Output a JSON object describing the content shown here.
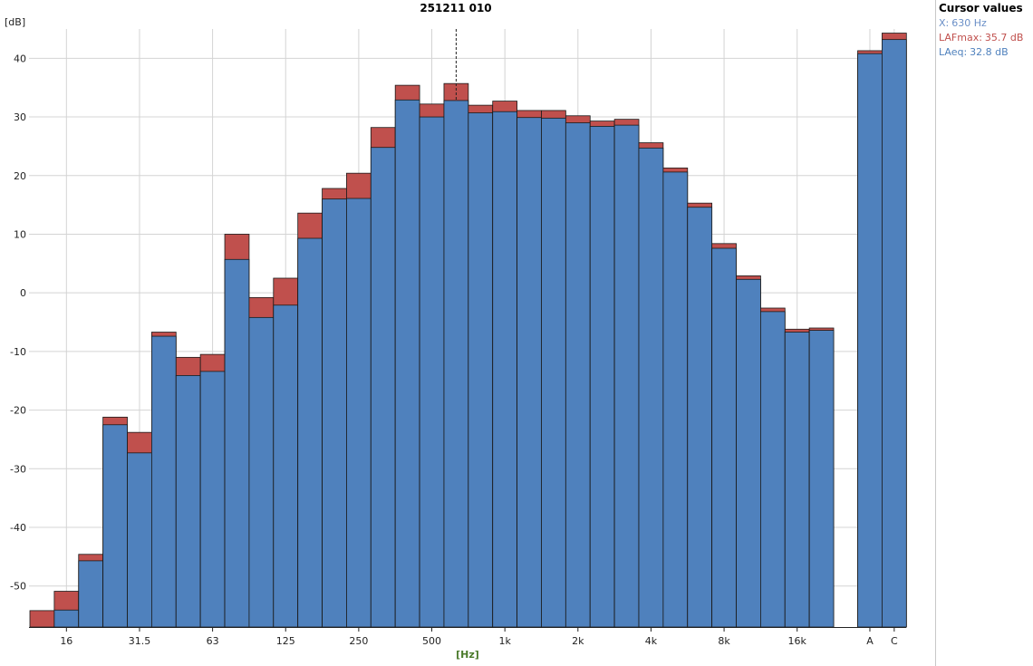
{
  "colors": {
    "laeq": "#4f81bd",
    "lafmax": "#c0504d",
    "grid": "#d4d4d4",
    "cursor_x": "#6a8fc7",
    "xlabel": "#4a7a2a"
  },
  "cursor": {
    "title": "Cursor values",
    "x_label": "X:",
    "x_value": "630 Hz",
    "lafmax_label": "LAFmax:",
    "lafmax_value": "35.7 dB",
    "laeq_label": "LAeq:",
    "laeq_value": "32.8 dB"
  },
  "chart_data": {
    "type": "bar",
    "title": "251211 010",
    "xlabel": "[Hz]",
    "ylabel": "[dB]",
    "ylim": [
      -57,
      45
    ],
    "yticks": [
      40,
      30,
      20,
      10,
      0,
      -10,
      -20,
      -30,
      -40,
      -50
    ],
    "grid": true,
    "cursor_category": "630",
    "categories": [
      "12.5",
      "16",
      "20",
      "25",
      "31.5",
      "40",
      "50",
      "63",
      "80",
      "100",
      "125",
      "160",
      "200",
      "250",
      "315",
      "400",
      "500",
      "630",
      "800",
      "1k",
      "1.25k",
      "1.6k",
      "2k",
      "2.5k",
      "3.15k",
      "4k",
      "5k",
      "6.3k",
      "8k",
      "10k",
      "12.5k",
      "16k",
      "20k"
    ],
    "tick_labels": [
      "",
      "16",
      "",
      "",
      "31.5",
      "",
      "",
      "63",
      "",
      "",
      "125",
      "",
      "",
      "250",
      "",
      "",
      "500",
      "",
      "",
      "1k",
      "",
      "",
      "2k",
      "",
      "",
      "4k",
      "",
      "",
      "8k",
      "",
      "",
      "16k",
      ""
    ],
    "series": [
      {
        "name": "LAFmax",
        "values": [
          -54.2,
          -50.9,
          -44.6,
          -21.2,
          -23.8,
          -6.7,
          -11.0,
          -10.5,
          10.0,
          -0.8,
          2.5,
          13.6,
          17.8,
          20.4,
          28.2,
          35.4,
          32.2,
          35.7,
          32.0,
          32.7,
          31.1,
          31.1,
          30.2,
          29.3,
          29.6,
          25.6,
          21.3,
          15.3,
          8.4,
          2.9,
          -2.6,
          -6.2,
          -6.0
        ]
      },
      {
        "name": "LAeq",
        "values": [
          -57.0,
          -54.1,
          -45.7,
          -22.5,
          -27.3,
          -7.4,
          -14.1,
          -13.4,
          5.7,
          -4.2,
          -2.1,
          9.3,
          16.0,
          16.1,
          24.8,
          32.9,
          30.0,
          32.8,
          30.7,
          30.9,
          29.9,
          29.8,
          29.0,
          28.4,
          28.6,
          24.7,
          20.6,
          14.6,
          7.6,
          2.3,
          -3.2,
          -6.7,
          -6.4
        ]
      }
    ],
    "overall_categories": [
      "A",
      "C"
    ],
    "overall_series": [
      {
        "name": "LAFmax",
        "values": [
          41.3,
          44.3
        ]
      },
      {
        "name": "LAeq",
        "values": [
          40.8,
          43.2
        ]
      }
    ]
  }
}
